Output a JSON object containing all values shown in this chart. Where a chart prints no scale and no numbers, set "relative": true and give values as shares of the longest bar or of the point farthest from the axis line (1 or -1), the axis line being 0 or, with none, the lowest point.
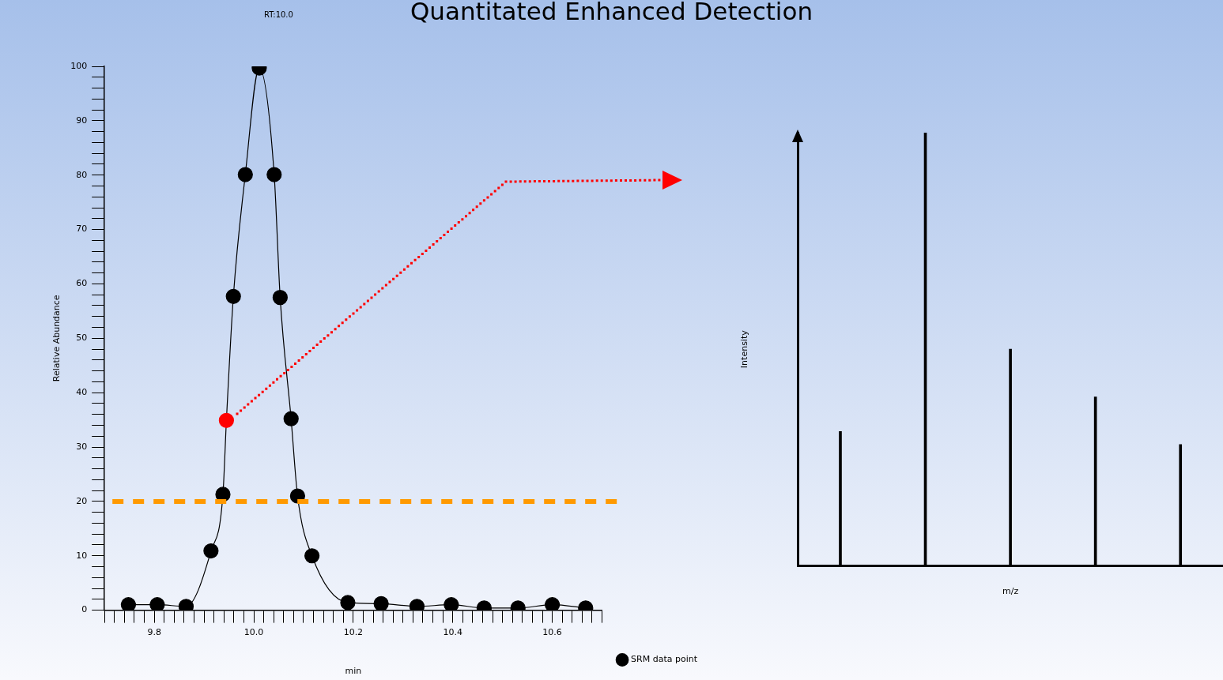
{
  "chart_data": [
    {
      "type": "line",
      "title": "Quantitated Enhanced Detection",
      "xlabel": "min",
      "ylabel": "Relative Abundance",
      "annotations": [
        "RT:10.0"
      ],
      "x": [
        9.748,
        9.806,
        9.864,
        9.914,
        9.938,
        9.945,
        9.959,
        9.983,
        10.011,
        10.041,
        10.053,
        10.075,
        10.088,
        10.117,
        10.189,
        10.256,
        10.328,
        10.397,
        10.463,
        10.531,
        10.6,
        10.667
      ],
      "series": [
        {
          "name": "SRM data point",
          "color": "#000000",
          "colors": [
            "#000000",
            "#000000",
            "#000000",
            "#000000",
            "#000000",
            "#ff0000",
            "#000000",
            "#000000",
            "#000000",
            "#000000",
            "#000000",
            "#000000",
            "#000000",
            "#000000",
            "#000000",
            "#000000",
            "#000000",
            "#000000",
            "#000000",
            "#000000",
            "#000000",
            "#000000"
          ],
          "values": [
            1.0,
            1.0,
            0.7,
            10.9,
            21.3,
            34.9,
            57.7,
            80.1,
            99.7,
            80.1,
            57.5,
            35.2,
            21.0,
            10.0,
            1.4,
            1.2,
            0.7,
            1.0,
            0.4,
            0.4,
            1.0,
            0.4
          ]
        }
      ],
      "marker": "circle",
      "legend": "bottom right",
      "ref_lines": [
        {
          "axis": "y",
          "value": 20,
          "color": "#ff9900",
          "line_style": "dashed"
        }
      ],
      "xlim": [
        9.7,
        10.7
      ],
      "xticks": [
        {
          "value": 9.7,
          "label": null
        },
        {
          "value": 9.72,
          "label": null
        },
        {
          "value": 9.74,
          "label": null
        },
        {
          "value": 9.76,
          "label": null
        },
        {
          "value": 9.78,
          "label": null
        },
        9.8,
        {
          "value": 9.82,
          "label": null
        },
        {
          "value": 9.84,
          "label": null
        },
        {
          "value": 9.86,
          "label": null
        },
        {
          "value": 9.88,
          "label": null
        },
        {
          "value": 9.9,
          "label": null
        },
        {
          "value": 9.92,
          "label": null
        },
        {
          "value": 9.94,
          "label": null
        },
        {
          "value": 9.96,
          "label": null
        },
        {
          "value": 9.98,
          "label": null
        },
        {
          "value": 10,
          "label": "10.0"
        },
        {
          "value": 10.02,
          "label": null
        },
        {
          "value": 10.04,
          "label": null
        },
        {
          "value": 10.06,
          "label": null
        },
        {
          "value": 10.08,
          "label": null
        },
        {
          "value": 10.1,
          "label": null
        },
        {
          "value": 10.12,
          "label": null
        },
        {
          "value": 10.14,
          "label": null
        },
        {
          "value": 10.16,
          "label": null
        },
        {
          "value": 10.18,
          "label": null
        },
        10.2,
        {
          "value": 10.22,
          "label": null
        },
        {
          "value": 10.24,
          "label": null
        },
        {
          "value": 10.26,
          "label": null
        },
        {
          "value": 10.28,
          "label": null
        },
        {
          "value": 10.3,
          "label": null
        },
        {
          "value": 10.32,
          "label": null
        },
        {
          "value": 10.34,
          "label": null
        },
        {
          "value": 10.36,
          "label": null
        },
        {
          "value": 10.38,
          "label": null
        },
        10.4,
        {
          "value": 10.42,
          "label": null
        },
        {
          "value": 10.44,
          "label": null
        },
        {
          "value": 10.46,
          "label": null
        },
        {
          "value": 10.48,
          "label": null
        },
        {
          "value": 10.5,
          "label": null
        },
        {
          "value": 10.52,
          "label": null
        },
        {
          "value": 10.54,
          "label": null
        },
        {
          "value": 10.56,
          "label": null
        },
        {
          "value": 10.58,
          "label": null
        },
        10.6,
        {
          "value": 10.62,
          "label": null
        },
        {
          "value": 10.64,
          "label": null
        },
        {
          "value": 10.66,
          "label": null
        },
        {
          "value": 10.68,
          "label": null
        },
        {
          "value": 10.7,
          "label": null
        }
      ],
      "ylim": [
        0,
        100
      ],
      "yticks": [
        0,
        {
          "value": 2,
          "label": null
        },
        {
          "value": 4,
          "label": null
        },
        {
          "value": 6,
          "label": null
        },
        {
          "value": 8,
          "label": null
        },
        10,
        {
          "value": 12,
          "label": null
        },
        {
          "value": 14,
          "label": null
        },
        {
          "value": 16,
          "label": null
        },
        {
          "value": 18,
          "label": null
        },
        20,
        {
          "value": 22,
          "label": null
        },
        {
          "value": 24,
          "label": null
        },
        {
          "value": 26,
          "label": null
        },
        {
          "value": 28,
          "label": null
        },
        30,
        {
          "value": 32,
          "label": null
        },
        {
          "value": 34,
          "label": null
        },
        {
          "value": 36,
          "label": null
        },
        {
          "value": 38,
          "label": null
        },
        40,
        {
          "value": 42,
          "label": null
        },
        {
          "value": 44,
          "label": null
        },
        {
          "value": 46,
          "label": null
        },
        {
          "value": 48,
          "label": null
        },
        50,
        {
          "value": 52,
          "label": null
        },
        {
          "value": 54,
          "label": null
        },
        {
          "value": 56,
          "label": null
        },
        {
          "value": 58,
          "label": null
        },
        60,
        {
          "value": 62,
          "label": null
        },
        {
          "value": 64,
          "label": null
        },
        {
          "value": 66,
          "label": null
        },
        {
          "value": 68,
          "label": null
        },
        70,
        {
          "value": 72,
          "label": null
        },
        {
          "value": 74,
          "label": null
        },
        {
          "value": 76,
          "label": null
        },
        {
          "value": 78,
          "label": null
        },
        80,
        {
          "value": 82,
          "label": null
        },
        {
          "value": 84,
          "label": null
        },
        {
          "value": 86,
          "label": null
        },
        {
          "value": 88,
          "label": null
        },
        90,
        {
          "value": 92,
          "label": null
        },
        {
          "value": 94,
          "label": null
        },
        {
          "value": 96,
          "label": null
        },
        {
          "value": 98,
          "label": null
        },
        100
      ]
    },
    {
      "type": "bar",
      "relative": true,
      "xlabel": "m/z",
      "ylabel": "Intensity",
      "color": "#000000",
      "categories": [
        null,
        null,
        null,
        null,
        null
      ],
      "values": [
        0.31,
        1.0,
        0.5,
        0.39,
        0.28
      ]
    }
  ]
}
